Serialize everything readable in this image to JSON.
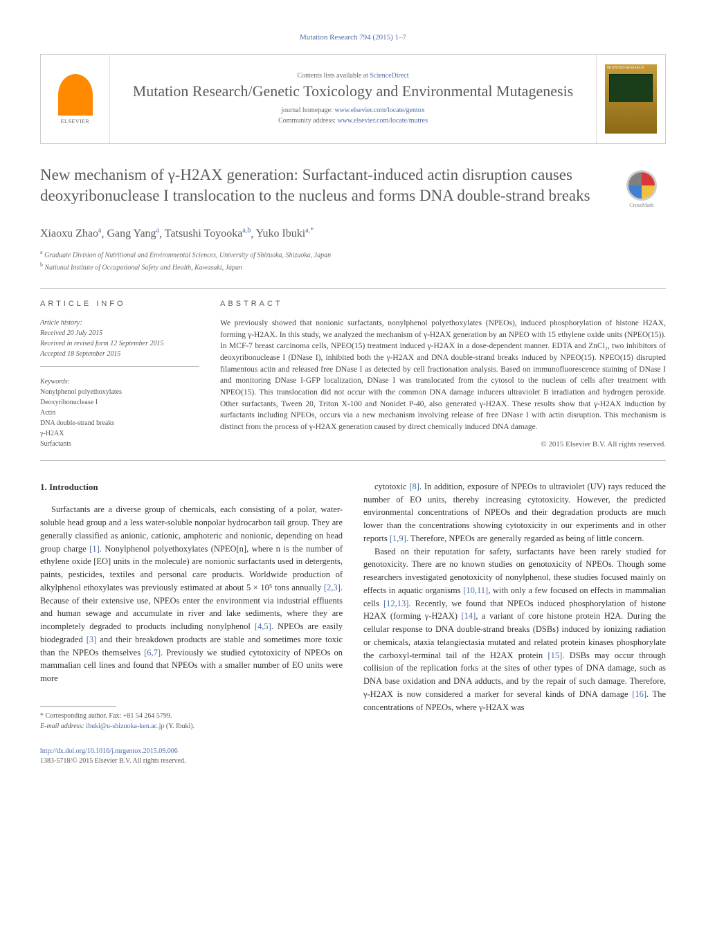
{
  "header": {
    "citation": "Mutation Research 794 (2015) 1–7"
  },
  "masthead": {
    "contents_prefix": "Contents lists available at ",
    "contents_link": "ScienceDirect",
    "journal_title": "Mutation Research/Genetic Toxicology and Environmental Mutagenesis",
    "homepage_label": "journal homepage: ",
    "homepage_url": "www.elsevier.com/locate/gentox",
    "community_label": "Community address: ",
    "community_url": "www.elsevier.com/locate/mutres",
    "elsevier_label": "ELSEVIER",
    "cover_label": "MUTATION RESEARCH"
  },
  "crossmark": {
    "label": "CrossMark"
  },
  "article": {
    "title": "New mechanism of γ-H2AX generation: Surfactant-induced actin disruption causes deoxyribonuclease I translocation to the nucleus and forms DNA double-strand breaks",
    "authors_html": "Xiaoxu Zhao|a|, Gang Yang|a|, Tatsushi Toyooka|a,b|, Yuko Ibuki|a,*|",
    "authors": [
      {
        "name": "Xiaoxu Zhao",
        "aff": "a"
      },
      {
        "name": "Gang Yang",
        "aff": "a"
      },
      {
        "name": "Tatsushi Toyooka",
        "aff": "a,b"
      },
      {
        "name": "Yuko Ibuki",
        "aff": "a,",
        "corr": "*"
      }
    ],
    "affiliations": [
      {
        "sup": "a",
        "text": "Graduate Division of Nutritional and Environmental Sciences, University of Shizuoka, Shizuoka, Japan"
      },
      {
        "sup": "b",
        "text": "National Institute of Occupational Safety and Health, Kawasaki, Japan"
      }
    ]
  },
  "info": {
    "heading": "ARTICLE INFO",
    "history_label": "Article history:",
    "received": "Received 20 July 2015",
    "revised": "Received in revised form 12 September 2015",
    "accepted": "Accepted 18 September 2015",
    "keywords_label": "Keywords:",
    "keywords": [
      "Nonylphenol polyethoxylates",
      "Deoxyribonuclease I",
      "Actin",
      "DNA double-strand breaks",
      "γ-H2AX",
      "Surfactants"
    ]
  },
  "abstract": {
    "heading": "ABSTRACT",
    "text": "We previously showed that nonionic surfactants, nonylphenol polyethoxylates (NPEOs), induced phosphorylation of histone H2AX, forming γ-H2AX. In this study, we analyzed the mechanism of γ-H2AX generation by an NPEO with 15 ethylene oxide units (NPEO(15)). In MCF-7 breast carcinoma cells, NPEO(15) treatment induced γ-H2AX in a dose-dependent manner. EDTA and ZnCl₂, two inhibitors of deoxyribonuclease I (DNase I), inhibited both the γ-H2AX and DNA double-strand breaks induced by NPEO(15). NPEO(15) disrupted filamentous actin and released free DNase I as detected by cell fractionation analysis. Based on immunofluorescence staining of DNase I and monitoring DNase I-GFP localization, DNase I was translocated from the cytosol to the nucleus of cells after treatment with NPEO(15). This translocation did not occur with the common DNA damage inducers ultraviolet B irradiation and hydrogen peroxide. Other surfactants, Tween 20, Triton X-100 and Nonidet P-40, also generated γ-H2AX. These results show that γ-H2AX induction by surfactants including NPEOs, occurs via a new mechanism involving release of free DNase I with actin disruption. This mechanism is distinct from the process of γ-H2AX generation caused by direct chemically induced DNA damage.",
    "copyright": "© 2015 Elsevier B.V. All rights reserved."
  },
  "body": {
    "section_heading": "1. Introduction",
    "col1_p1": "Surfactants are a diverse group of chemicals, each consisting of a polar, water-soluble head group and a less water-soluble nonpolar hydrocarbon tail group. They are generally classified as anionic, cationic, amphoteric and nonionic, depending on head group charge [1]. Nonylphenol polyethoxylates (NPEO[n], where n is the number of ethylene oxide [EO] units in the molecule) are nonionic surfactants used in detergents, paints, pesticides, textiles and personal care products. Worldwide production of alkylphenol ethoxylates was previously estimated at about 5 × 10⁵ tons annually [2,3]. Because of their extensive use, NPEOs enter the environment via industrial effluents and human sewage and accumulate in river and lake sediments, where they are incompletely degraded to products including nonylphenol [4,5]. NPEOs are easily biodegraded [3] and their breakdown products are stable and sometimes more toxic than the NPEOs themselves [6,7]. Previously we studied cytotoxicity of NPEOs on mammalian cell lines and found that NPEOs with a smaller number of EO units were more",
    "col2_p1": "cytotoxic [8]. In addition, exposure of NPEOs to ultraviolet (UV) rays reduced the number of EO units, thereby increasing cytotoxicity. However, the predicted environmental concentrations of NPEOs and their degradation products are much lower than the concentrations showing cytotoxicity in our experiments and in other reports [1,9]. Therefore, NPEOs are generally regarded as being of little concern.",
    "col2_p2": "Based on their reputation for safety, surfactants have been rarely studied for genotoxicity. There are no known studies on genotoxicity of NPEOs. Though some researchers investigated genotoxicity of nonylphenol, these studies focused mainly on effects in aquatic organisms [10,11], with only a few focused on effects in mammalian cells [12,13]. Recently, we found that NPEOs induced phosphorylation of histone H2AX (forming γ-H2AX) [14], a variant of core histone protein H2A. During the cellular response to DNA double-strand breaks (DSBs) induced by ionizing radiation or chemicals, ataxia telangiectasia mutated and related protein kinases phosphorylate the carboxyl-terminal tail of the H2AX protein [15]. DSBs may occur through collision of the replication forks at the sites of other types of DNA damage, such as DNA base oxidation and DNA adducts, and by the repair of such damage. Therefore, γ-H2AX is now considered a marker for several kinds of DNA damage [16]. The concentrations of NPEOs, where γ-H2AX was"
  },
  "footnotes": {
    "corr_label": "* Corresponding author. Fax: +81 54 264 5799.",
    "email_label": "E-mail address: ",
    "email": "ibuki@u-shizuoka-ken.ac.jp",
    "email_suffix": " (Y. Ibuki)."
  },
  "doi": {
    "url": "http://dx.doi.org/10.1016/j.mrgentox.2015.09.006",
    "issn_line": "1383-5718/© 2015 Elsevier B.V. All rights reserved."
  },
  "colors": {
    "link": "#4b6aa8",
    "heading_gray": "#5a5a5a",
    "text": "#333333",
    "border": "#cccccc",
    "elsevier_orange": "#ff8a00"
  }
}
